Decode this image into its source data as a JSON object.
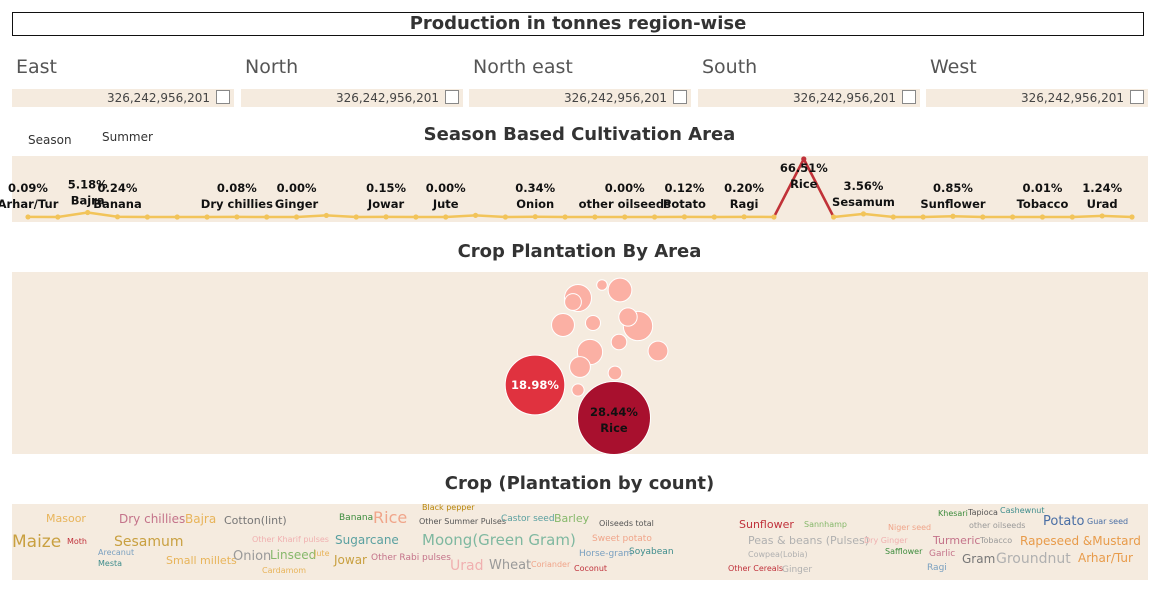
{
  "banner": {
    "title": "Production in tonnes region-wise"
  },
  "regions": [
    {
      "name": "East",
      "value": "326,242,956,201"
    },
    {
      "name": "North",
      "value": "326,242,956,201"
    },
    {
      "name": "North east",
      "value": "326,242,956,201"
    },
    {
      "name": "South",
      "value": "326,242,956,201"
    },
    {
      "name": "West",
      "value": "326,242,956,201"
    }
  ],
  "filters": {
    "season_label": "Season",
    "season_value": "Summer"
  },
  "season_section": {
    "title": "Season Based Cultivation Area"
  },
  "area_section": {
    "title": "Crop Plantation By Area"
  },
  "count_section": {
    "title": "Crop (Plantation by count)"
  },
  "colors": {
    "panel_bg": "#f5ebdf",
    "line": "#f2c45a",
    "peak": "#c0313b",
    "bubble_light": "#fbb0a4",
    "bubble_mid": "#e0323f",
    "bubble_dark": "#a8102e"
  },
  "chart_data": [
    {
      "type": "line",
      "title": "Season Based Cultivation Area",
      "ylim": [
        0,
        66.51
      ],
      "points": [
        {
          "value": 0.09,
          "label_pct": "0.09%",
          "label_name": "Arhar/Tur"
        },
        {
          "value": 0.0
        },
        {
          "value": 5.18,
          "label_pct": "5.18%",
          "label_name": "Bajra"
        },
        {
          "value": 0.24,
          "label_pct": "0.24%",
          "label_name": "Banana"
        },
        {
          "value": 0.0
        },
        {
          "value": 0.0
        },
        {
          "value": 0.0
        },
        {
          "value": 0.08,
          "label_pct": "0.08%",
          "label_name": "Dry chillies"
        },
        {
          "value": 0.0
        },
        {
          "value": 0.0,
          "label_pct": "0.00%",
          "label_name": "Ginger"
        },
        {
          "value": 1.8
        },
        {
          "value": 0.0
        },
        {
          "value": 0.15,
          "label_pct": "0.15%",
          "label_name": "Jowar"
        },
        {
          "value": 0.0
        },
        {
          "value": 0.0,
          "label_pct": "0.00%",
          "label_name": "Jute"
        },
        {
          "value": 1.9
        },
        {
          "value": 0.0
        },
        {
          "value": 0.34,
          "label_pct": "0.34%",
          "label_name": "Onion"
        },
        {
          "value": 0.0
        },
        {
          "value": 0.0
        },
        {
          "value": 0.0,
          "label_pct": "0.00%",
          "label_name": "other oilseeds"
        },
        {
          "value": 0.0
        },
        {
          "value": 0.12,
          "label_pct": "0.12%",
          "label_name": "Potato"
        },
        {
          "value": 0.0
        },
        {
          "value": 0.2,
          "label_pct": "0.20%",
          "label_name": "Ragi"
        },
        {
          "value": 0.0
        },
        {
          "value": 66.51,
          "label_pct": "66.51%",
          "label_name": "Rice"
        },
        {
          "value": 0.0
        },
        {
          "value": 3.56,
          "label_pct": "3.56%",
          "label_name": "Sesamum"
        },
        {
          "value": 0.0
        },
        {
          "value": 0.0
        },
        {
          "value": 0.85,
          "label_pct": "0.85%",
          "label_name": "Sunflower"
        },
        {
          "value": 0.0
        },
        {
          "value": 0.0
        },
        {
          "value": 0.01,
          "label_pct": "0.01%",
          "label_name": "Tobacco"
        },
        {
          "value": 0.0
        },
        {
          "value": 1.24,
          "label_pct": "1.24%",
          "label_name": "Urad"
        },
        {
          "value": 0.0
        }
      ]
    },
    {
      "type": "bubble",
      "title": "Crop Plantation By Area",
      "bubbles": [
        {
          "value": 28.44,
          "label_pct": "28.44%",
          "label_name": "Rice",
          "color": "#a8102e"
        },
        {
          "value": 18.98,
          "label_pct": "18.98%",
          "color": "#e0323f"
        },
        {
          "value": 4.6,
          "color": "#fbb0a4"
        },
        {
          "value": 3.9,
          "color": "#fbb0a4"
        },
        {
          "value": 3.4,
          "color": "#fbb0a4"
        },
        {
          "value": 3.0,
          "color": "#fbb0a4"
        },
        {
          "value": 2.8,
          "color": "#fbb0a4"
        },
        {
          "value": 2.3,
          "color": "#fbb0a4"
        },
        {
          "value": 2.1,
          "color": "#fbb0a4"
        },
        {
          "value": 1.8,
          "color": "#fbb0a4"
        },
        {
          "value": 1.5,
          "color": "#fbb0a4"
        },
        {
          "value": 1.3,
          "color": "#fbb0a4"
        },
        {
          "value": 1.2,
          "color": "#fbb0a4"
        },
        {
          "value": 1.0,
          "color": "#fbb0a4"
        },
        {
          "value": 0.8,
          "color": "#fbb0a4"
        },
        {
          "value": 0.6,
          "color": "#fbb0a4"
        }
      ]
    },
    {
      "type": "wordcloud",
      "title": "Crop (Plantation by count)",
      "words": [
        {
          "text": "Masoor",
          "color": "#e8b45a"
        },
        {
          "text": "Dry chillies",
          "color": "#c4738a"
        },
        {
          "text": "Bajra",
          "color": "#e8b45a"
        },
        {
          "text": "Cotton(lint)",
          "color": "#777777"
        },
        {
          "text": "Banana",
          "color": "#3d8c3d"
        },
        {
          "text": "Rice",
          "color": "#f0a58a"
        },
        {
          "text": "Black pepper",
          "color": "#b8860b"
        },
        {
          "text": "Other Summer Pulses",
          "color": "#555555"
        },
        {
          "text": "Castor seed",
          "color": "#5aa0a0"
        },
        {
          "text": "Barley",
          "color": "#86b86b"
        },
        {
          "text": "Oilseeds total",
          "color": "#555555"
        },
        {
          "text": "Maize",
          "color": "#c9a040"
        },
        {
          "text": "Moth",
          "color": "#c0313b"
        },
        {
          "text": "Arecanut",
          "color": "#7aa0c0"
        },
        {
          "text": "Sesamum",
          "color": "#c9a040"
        },
        {
          "text": "Other Kharif pulses",
          "color": "#f0b0b0"
        },
        {
          "text": "Sugarcane",
          "color": "#5aa0a0"
        },
        {
          "text": "Moong(Green Gram)",
          "color": "#7fb8a0"
        },
        {
          "text": "Mesta",
          "color": "#3d8c8c"
        },
        {
          "text": "Small millets",
          "color": "#e8b45a"
        },
        {
          "text": "Onion",
          "color": "#999999"
        },
        {
          "text": "Linseed",
          "color": "#86b86b"
        },
        {
          "text": "Jute",
          "color": "#e8b45a"
        },
        {
          "text": "Jowar",
          "color": "#c9a040"
        },
        {
          "text": "Other Rabi pulses",
          "color": "#c4738a"
        },
        {
          "text": "Urad",
          "color": "#f0b0b0"
        },
        {
          "text": "Wheat",
          "color": "#999999"
        },
        {
          "text": "Coriander",
          "color": "#f0a58a"
        },
        {
          "text": "Cardamom",
          "color": "#e8b45a"
        },
        {
          "text": "Coconut",
          "color": "#c0313b"
        },
        {
          "text": "Sunflower",
          "color": "#c0313b"
        },
        {
          "text": "Sannhamp",
          "color": "#86b86b"
        },
        {
          "text": "Niger seed",
          "color": "#f0a58a"
        },
        {
          "text": "Khesari",
          "color": "#3d8c3d"
        },
        {
          "text": "Tapioca",
          "color": "#555555"
        },
        {
          "text": "Cashewnut",
          "color": "#3d8c8c"
        },
        {
          "text": "other oilseeds",
          "color": "#999999"
        },
        {
          "text": "Potato",
          "color": "#4a6fa5"
        },
        {
          "text": "Guar seed",
          "color": "#4a6fa5"
        },
        {
          "text": "Peas & beans (Pulses)",
          "color": "#b0b0b0"
        },
        {
          "text": "Dry Ginger",
          "color": "#f0b0b0"
        },
        {
          "text": "Turmeric",
          "color": "#c4738a"
        },
        {
          "text": "Tobacco",
          "color": "#999999"
        },
        {
          "text": "Rapeseed &Mustard",
          "color": "#e89b4a"
        },
        {
          "text": "Horse-gram",
          "color": "#7aa0c0"
        },
        {
          "text": "Soyabean",
          "color": "#3d8c8c"
        },
        {
          "text": "Sweet potato",
          "color": "#f0a58a"
        },
        {
          "text": "Cowpea(Lobia)",
          "color": "#b0b0b0"
        },
        {
          "text": "Safflower",
          "color": "#3d8c3d"
        },
        {
          "text": "Garlic",
          "color": "#c4738a"
        },
        {
          "text": "Gram",
          "color": "#777777"
        },
        {
          "text": "Groundnut",
          "color": "#b0b0b0"
        },
        {
          "text": "Arhar/Tur",
          "color": "#e89b4a"
        },
        {
          "text": "Other Cereals",
          "color": "#c0313b"
        },
        {
          "text": "Ginger",
          "color": "#b0b0b0"
        },
        {
          "text": "Ragi",
          "color": "#7aa0c0"
        }
      ]
    }
  ]
}
